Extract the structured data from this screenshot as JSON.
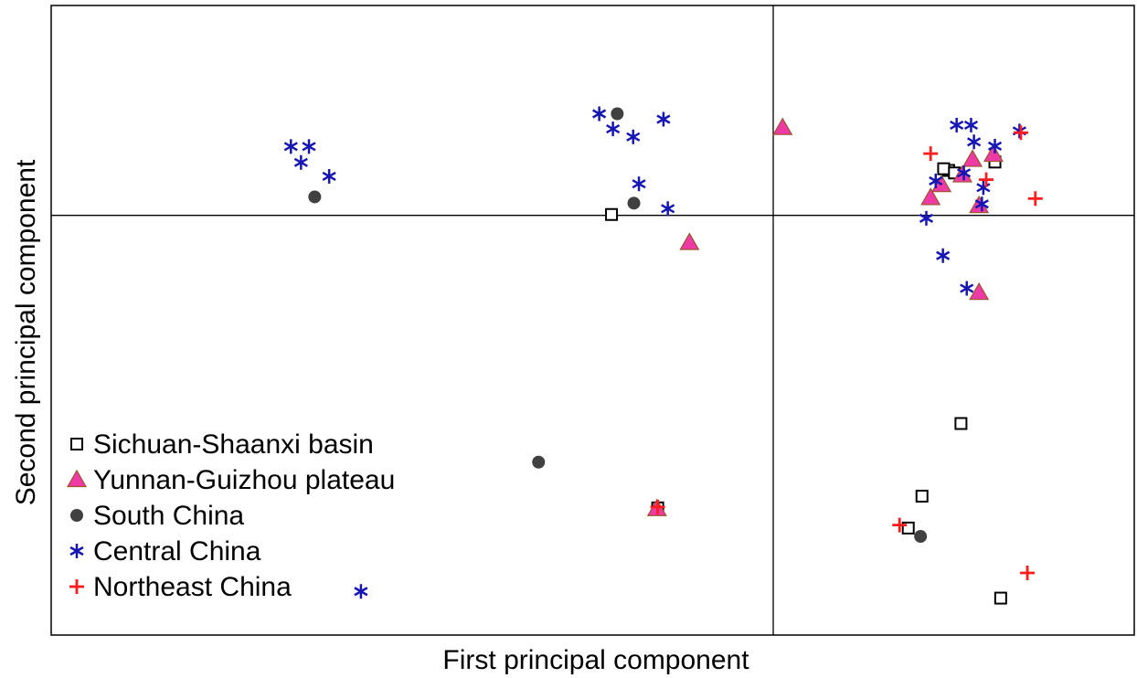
{
  "chart_data": {
    "type": "scatter",
    "xlabel": "First principal component",
    "ylabel": "Second principal component",
    "xlim": [
      -1,
      0.5
    ],
    "ylim": [
      -1,
      0.5
    ],
    "grid": false,
    "legend_position": "bottom-left",
    "reference_lines": {
      "x": 0,
      "y": 0
    },
    "series": [
      {
        "name": "Sichuan-Shaanxi basin",
        "marker": "square-open",
        "color": "#000000",
        "points": [
          {
            "x": -0.224,
            "y": 0.002
          },
          {
            "x": 0.243,
            "y": 0.107
          },
          {
            "x": 0.236,
            "y": 0.111
          },
          {
            "x": 0.251,
            "y": 0.101
          },
          {
            "x": 0.307,
            "y": 0.127
          },
          {
            "x": -0.16,
            "y": -0.697
          },
          {
            "x": 0.26,
            "y": -0.496
          },
          {
            "x": 0.206,
            "y": -0.669
          },
          {
            "x": 0.187,
            "y": -0.745
          },
          {
            "x": 0.315,
            "y": -0.912
          }
        ]
      },
      {
        "name": "Yunnan-Guizhou plateau",
        "marker": "triangle",
        "color": "#ee3aa5",
        "points": [
          {
            "x": 0.013,
            "y": 0.209
          },
          {
            "x": -0.116,
            "y": -0.065
          },
          {
            "x": 0.218,
            "y": 0.042
          },
          {
            "x": 0.233,
            "y": 0.073
          },
          {
            "x": 0.262,
            "y": 0.096
          },
          {
            "x": 0.276,
            "y": 0.133
          },
          {
            "x": 0.305,
            "y": 0.145
          },
          {
            "x": 0.285,
            "y": 0.023
          },
          {
            "x": 0.285,
            "y": -0.184
          },
          {
            "x": -0.161,
            "y": -0.699
          }
        ]
      },
      {
        "name": "South China",
        "marker": "circle",
        "color": "#404040",
        "points": [
          {
            "x": -0.635,
            "y": 0.044
          },
          {
            "x": -0.216,
            "y": 0.242
          },
          {
            "x": -0.193,
            "y": 0.029
          },
          {
            "x": -0.325,
            "y": -0.588
          },
          {
            "x": 0.204,
            "y": -0.765
          }
        ]
      },
      {
        "name": "Central China",
        "marker": "asterisk",
        "color": "#1616b5",
        "points": [
          {
            "x": -0.668,
            "y": 0.164
          },
          {
            "x": -0.643,
            "y": 0.164
          },
          {
            "x": -0.654,
            "y": 0.126
          },
          {
            "x": -0.615,
            "y": 0.093
          },
          {
            "x": -0.241,
            "y": 0.242
          },
          {
            "x": -0.222,
            "y": 0.206
          },
          {
            "x": -0.194,
            "y": 0.187
          },
          {
            "x": -0.152,
            "y": 0.229
          },
          {
            "x": -0.186,
            "y": 0.075
          },
          {
            "x": -0.146,
            "y": 0.016
          },
          {
            "x": 0.254,
            "y": 0.215
          },
          {
            "x": 0.274,
            "y": 0.215
          },
          {
            "x": 0.278,
            "y": 0.175
          },
          {
            "x": 0.307,
            "y": 0.165
          },
          {
            "x": 0.341,
            "y": 0.201
          },
          {
            "x": 0.264,
            "y": 0.101
          },
          {
            "x": 0.225,
            "y": 0.082
          },
          {
            "x": 0.291,
            "y": 0.066
          },
          {
            "x": 0.289,
            "y": 0.027
          },
          {
            "x": 0.212,
            "y": -0.007
          },
          {
            "x": 0.235,
            "y": -0.096
          },
          {
            "x": 0.268,
            "y": -0.174
          },
          {
            "x": -0.571,
            "y": -0.896
          }
        ]
      },
      {
        "name": "Northeast China",
        "marker": "plus",
        "color": "#ff1c1c",
        "points": [
          {
            "x": 0.218,
            "y": 0.147
          },
          {
            "x": 0.295,
            "y": 0.085
          },
          {
            "x": 0.343,
            "y": 0.197
          },
          {
            "x": 0.363,
            "y": 0.04
          },
          {
            "x": -0.16,
            "y": -0.695
          },
          {
            "x": 0.175,
            "y": -0.738
          },
          {
            "x": 0.352,
            "y": -0.852
          }
        ]
      }
    ]
  }
}
